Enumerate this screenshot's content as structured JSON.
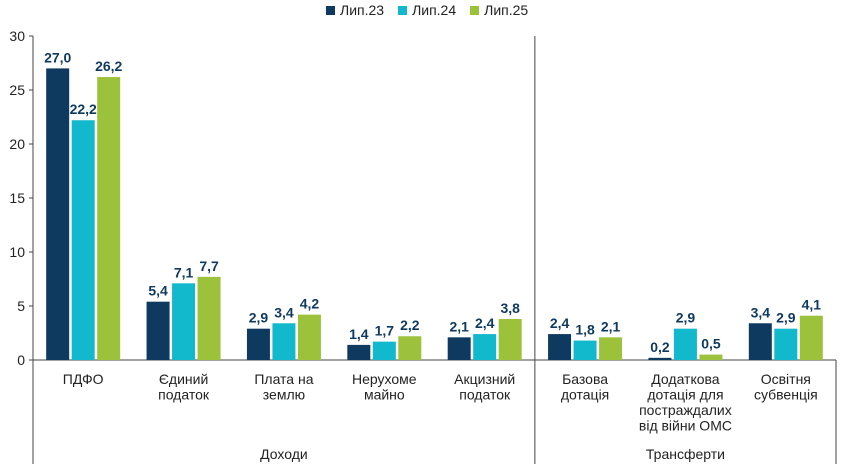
{
  "chart_data": {
    "type": "bar",
    "title": "",
    "xlabel": "",
    "ylabel": "",
    "ylim": [
      0,
      30
    ],
    "yticks": [
      "0",
      "5",
      "10",
      "15",
      "20",
      "25",
      "30"
    ],
    "grid": false,
    "legend_position": "top-center",
    "categories": [
      [
        "ПДФО"
      ],
      [
        "Єдиний",
        "податок"
      ],
      [
        "Плата на",
        "землю"
      ],
      [
        "Нерухоме",
        "майно"
      ],
      [
        "Акцизний",
        "податок"
      ],
      [
        "Базова",
        "дотація"
      ],
      [
        "Додаткова",
        "дотація для",
        "постраждалих",
        "від війни ОМС"
      ],
      [
        "Освітня",
        "субвенція"
      ]
    ],
    "groups": [
      {
        "label": "Доходи",
        "categories": [
          0,
          1,
          2,
          3,
          4
        ]
      },
      {
        "label": "Трансферти",
        "categories": [
          5,
          6,
          7
        ]
      }
    ],
    "series": [
      {
        "name": "Лип.23",
        "color": "#0f3a5f",
        "values": [
          27.0,
          5.4,
          2.9,
          1.4,
          2.1,
          2.4,
          0.2,
          3.4
        ],
        "labels": [
          "27,0",
          "5,4",
          "2,9",
          "1,4",
          "2,1",
          "2,4",
          "0,2",
          "3,4"
        ]
      },
      {
        "name": "Лип.24",
        "color": "#12b8cc",
        "values": [
          22.2,
          7.1,
          3.4,
          1.7,
          2.4,
          1.8,
          2.9,
          2.9
        ],
        "labels": [
          "22,2",
          "7,1",
          "3,4",
          "1,7",
          "2,4",
          "1,8",
          "2,9",
          "2,9"
        ]
      },
      {
        "name": "Лип.25",
        "color": "#9cc23b",
        "values": [
          26.2,
          7.7,
          4.2,
          2.2,
          3.8,
          2.1,
          0.5,
          4.1
        ],
        "labels": [
          "26,2",
          "7,7",
          "4,2",
          "2,2",
          "3,8",
          "2,1",
          "0,5",
          "4,1"
        ]
      }
    ]
  }
}
